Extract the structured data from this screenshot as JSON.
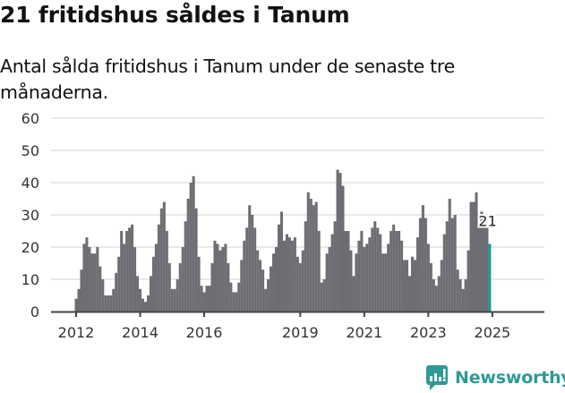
{
  "header": {
    "title": "21 fritidshus såldes i Tanum",
    "subtitle": "Antal sålda fritidshus i Tanum under de senaste tre månaderna."
  },
  "branding": {
    "logo_text": "Newsworthy",
    "logo_icon": "bar-chart-speech-bubble-icon",
    "color": "#2f9a94"
  },
  "colors": {
    "bar": "#6e6d73",
    "highlight": "#1a9e96",
    "grid": "#e2e2e2",
    "axis": "#444444"
  },
  "chart_data": {
    "type": "bar",
    "title": "21 fritidshus såldes i Tanum",
    "subtitle": "Antal sålda fritidshus i Tanum under de senaste tre månaderna.",
    "xlabel": "",
    "ylabel": "",
    "ylim": [
      0,
      60
    ],
    "yticks": [
      0,
      10,
      20,
      30,
      40,
      50,
      60
    ],
    "xticks": [
      "2012",
      "2014",
      "2016",
      "2019",
      "2021",
      "2023",
      "2025"
    ],
    "grid": true,
    "legend": null,
    "start": "2012-01",
    "frequency": "monthly (rolling 3-month sum)",
    "values": [
      4,
      7,
      13,
      21,
      23,
      20,
      18,
      18,
      20,
      14,
      10,
      5,
      5,
      5,
      7,
      12,
      17,
      25,
      21,
      25,
      26,
      27,
      20,
      11,
      7,
      4,
      3,
      5,
      11,
      17,
      21,
      27,
      32,
      34,
      25,
      15,
      7,
      7,
      10,
      15,
      20,
      28,
      35,
      40,
      42,
      32,
      17,
      8,
      6,
      8,
      8,
      15,
      22,
      21,
      19,
      20,
      21,
      15,
      9,
      6,
      6,
      9,
      16,
      22,
      26,
      33,
      30,
      26,
      19,
      16,
      13,
      7,
      10,
      14,
      18,
      20,
      27,
      31,
      22,
      24,
      23,
      22,
      23,
      17,
      15,
      19,
      28,
      37,
      35,
      33,
      34,
      25,
      9,
      10,
      18,
      20,
      24,
      28,
      44,
      43,
      39,
      25,
      25,
      19,
      11,
      18,
      22,
      25,
      20,
      21,
      23,
      26,
      28,
      26,
      24,
      18,
      18,
      21,
      25,
      27,
      25,
      25,
      22,
      16,
      16,
      11,
      17,
      16,
      23,
      29,
      33,
      29,
      21,
      15,
      10,
      8,
      11,
      16,
      24,
      28,
      35,
      29,
      30,
      13,
      10,
      7,
      10,
      19,
      34,
      34,
      37,
      27,
      31,
      29,
      26,
      21
    ],
    "annotations": [
      {
        "label": "21",
        "x": "last",
        "value": 21
      }
    ],
    "highlight_last": true
  }
}
